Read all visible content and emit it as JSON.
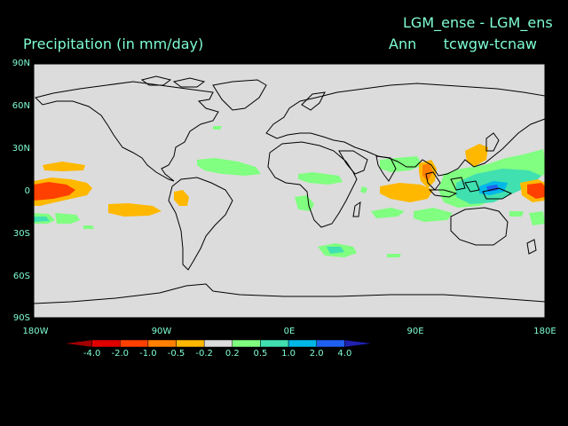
{
  "header": {
    "title_left": "Precipitation (in mm/day)",
    "title_right_line1": "LGM_ense - LGM_ens",
    "title_right_line2": "Ann      tcwgw-tcnaw"
  },
  "map": {
    "lat_labels": [
      "90N",
      "60N",
      "30N",
      "0",
      "30S",
      "60S",
      "90S"
    ],
    "lon_labels": [
      "180W",
      "90W",
      "0E",
      "90E",
      "180E"
    ],
    "colors": {
      "background": "#000000",
      "land_ocean": "#dcdcdc",
      "coastline": "#000000",
      "label_text": "#7fffd4"
    }
  },
  "colorbar": {
    "labels": [
      "-4.0",
      "-2.0",
      "-1.0",
      "-0.5",
      "-0.2",
      "0.2",
      "0.5",
      "1.0",
      "2.0",
      "4.0"
    ],
    "colors": [
      "#a00000",
      "#e00000",
      "#ff4000",
      "#ff8000",
      "#ffb800",
      "#dcdcdc",
      "#80ff80",
      "#40e0b0",
      "#00b8e8",
      "#2060f0",
      "#2020b0"
    ]
  }
}
